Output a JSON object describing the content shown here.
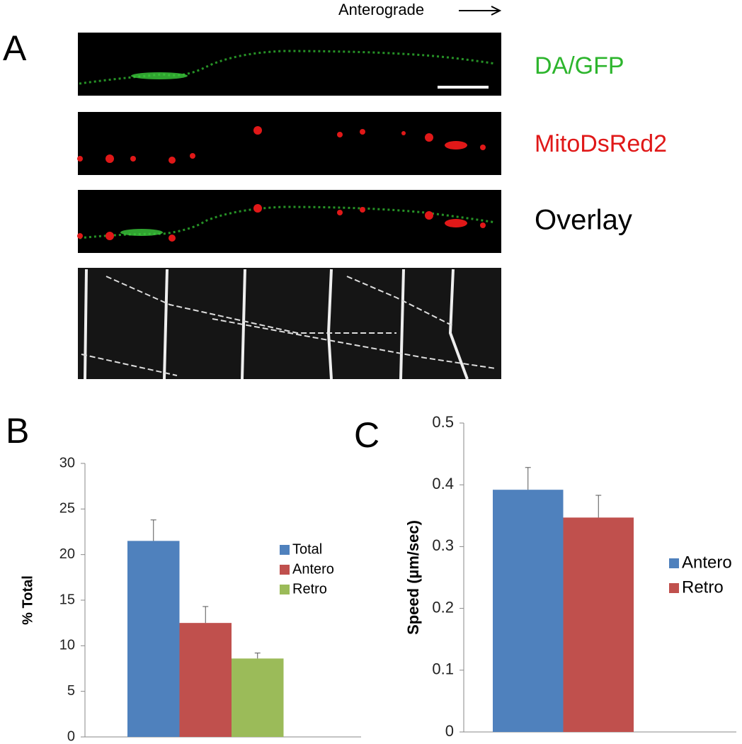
{
  "panel_a": {
    "panel_label": "A",
    "direction_label": "Anterograde",
    "channels": [
      "DA/GFP",
      "MitoDsRed2",
      "Overlay"
    ]
  },
  "chart_data": [
    {
      "type": "bar",
      "panel_label": "B",
      "y_label": "% Total",
      "ylim": [
        0,
        30
      ],
      "yticks": [
        0,
        5,
        10,
        15,
        20,
        25,
        30
      ],
      "series": [
        {
          "name": "Total",
          "color": "#4f81bd",
          "values": [
            21.5
          ],
          "errors": [
            2.3
          ]
        },
        {
          "name": "Antero",
          "color": "#c0504d",
          "values": [
            12.5
          ],
          "errors": [
            1.8
          ]
        },
        {
          "name": "Retro",
          "color": "#9bbb59",
          "values": [
            8.6
          ],
          "errors": [
            0.6
          ]
        }
      ]
    },
    {
      "type": "bar",
      "panel_label": "C",
      "y_label": "Speed (µm/sec)",
      "ylim": [
        0,
        0.5
      ],
      "yticks": [
        0,
        0.1,
        0.2,
        0.3,
        0.4,
        0.5
      ],
      "series": [
        {
          "name": "Antero",
          "color": "#4f81bd",
          "values": [
            0.392
          ],
          "errors": [
            0.036
          ]
        },
        {
          "name": "Retro",
          "color": "#c0504d",
          "values": [
            0.347
          ],
          "errors": [
            0.036
          ]
        }
      ]
    }
  ]
}
